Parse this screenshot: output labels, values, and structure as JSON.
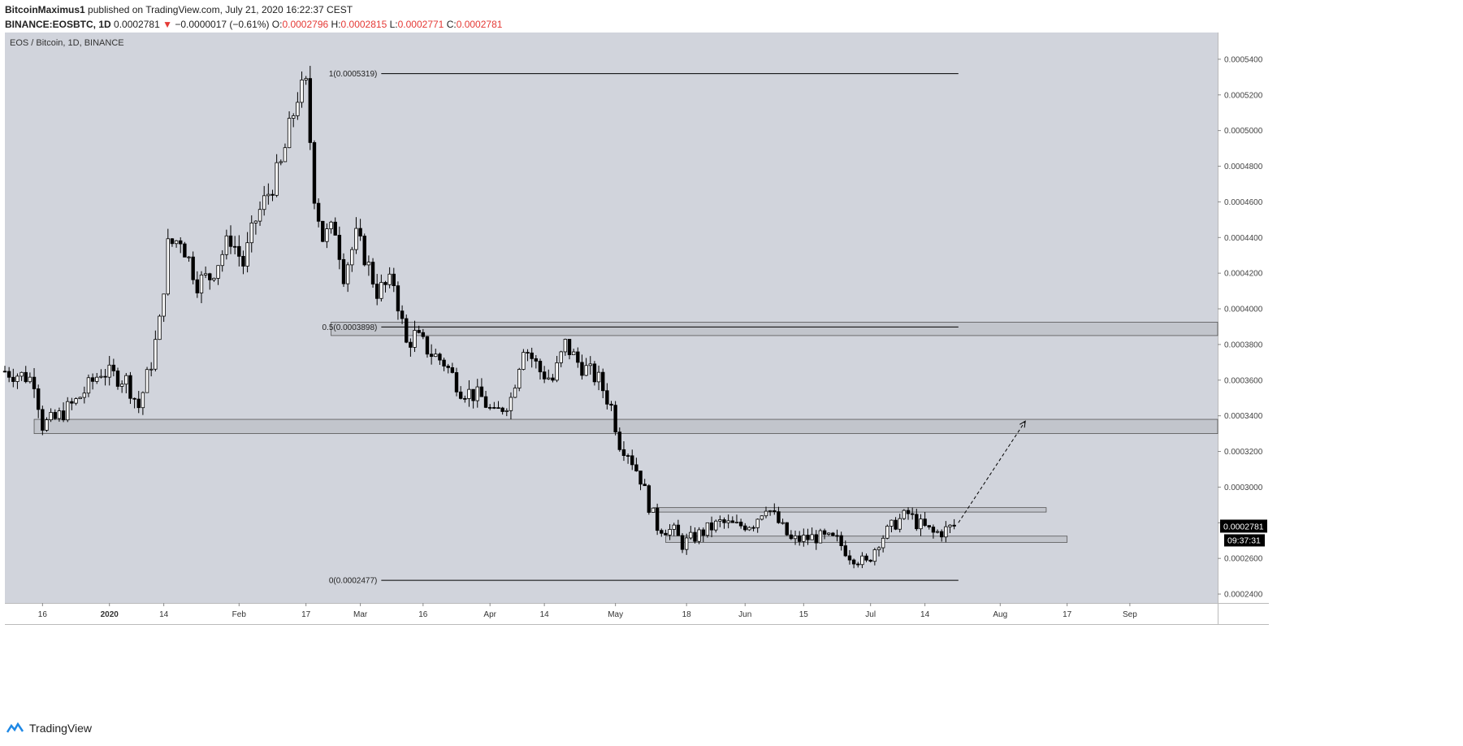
{
  "header": {
    "author": "BitcoinMaximus1",
    "published_text": "published on TradingView.com, July 21, 2020 16:22:37 CEST",
    "symbol": "BINANCE:EOSBTC, 1D",
    "last": "0.0002781",
    "change_arrow": "▼",
    "change": "−0.0000017 (−0.61%)",
    "o_label": "O:",
    "o_value": "0.0002796",
    "h_label": "H:",
    "h_value": "0.0002815",
    "l_label": "L:",
    "l_value": "0.0002771",
    "c_value": "0.0002781"
  },
  "footer": {
    "brand": "TradingView",
    "icon": "tradingview-logo-icon"
  },
  "colors": {
    "background": "#d1d4dc",
    "candle_up": "#ffffff",
    "candle_down": "#000000",
    "wick": "#000000",
    "zone_fill": "rgba(150,150,155,0.25)",
    "price_tag": "#000000",
    "negative": "#e53935"
  },
  "chart_data": {
    "type": "candlestick",
    "title": "EOS / Bitcoin, 1D, BINANCE",
    "ylim": [
      0.000235,
      0.000555
    ],
    "x_range": [
      "2019-12-07",
      "2020-09-22"
    ],
    "y_ticks": [
      "0.0005400",
      "0.0005200",
      "0.0005000",
      "0.0004800",
      "0.0004600",
      "0.0004400",
      "0.0004200",
      "0.0004000",
      "0.0003800",
      "0.0003600",
      "0.0003400",
      "0.0003200",
      "0.0003000",
      "0.0002800",
      "0.0002600",
      "0.0002400"
    ],
    "x_ticks": [
      {
        "label": "16",
        "date": "2019-12-16",
        "bold": false
      },
      {
        "label": "2020",
        "date": "2020-01-01",
        "bold": true
      },
      {
        "label": "14",
        "date": "2020-01-14",
        "bold": false
      },
      {
        "label": "Feb",
        "date": "2020-02-01",
        "bold": false
      },
      {
        "label": "17",
        "date": "2020-02-17",
        "bold": false
      },
      {
        "label": "Mar",
        "date": "2020-03-01",
        "bold": false
      },
      {
        "label": "16",
        "date": "2020-03-16",
        "bold": false
      },
      {
        "label": "Apr",
        "date": "2020-04-01",
        "bold": false
      },
      {
        "label": "14",
        "date": "2020-04-14",
        "bold": false
      },
      {
        "label": "May",
        "date": "2020-05-01",
        "bold": false
      },
      {
        "label": "18",
        "date": "2020-05-18",
        "bold": false
      },
      {
        "label": "Jun",
        "date": "2020-06-01",
        "bold": false
      },
      {
        "label": "15",
        "date": "2020-06-15",
        "bold": false
      },
      {
        "label": "Jul",
        "date": "2020-07-01",
        "bold": false
      },
      {
        "label": "14",
        "date": "2020-07-14",
        "bold": false
      },
      {
        "label": "Aug",
        "date": "2020-08-01",
        "bold": false
      },
      {
        "label": "17",
        "date": "2020-08-17",
        "bold": false
      },
      {
        "label": "Sep",
        "date": "2020-09-01",
        "bold": false
      }
    ],
    "anchors": [
      {
        "date": "2019-12-07",
        "close": 0.000365
      },
      {
        "date": "2019-12-12",
        "close": 0.000362
      },
      {
        "date": "2019-12-14",
        "close": 0.00036
      },
      {
        "date": "2019-12-16",
        "close": 0.000335
      },
      {
        "date": "2019-12-19",
        "close": 0.000338
      },
      {
        "date": "2019-12-24",
        "close": 0.000348
      },
      {
        "date": "2019-12-30",
        "close": 0.000365
      },
      {
        "date": "2020-01-05",
        "close": 0.00036
      },
      {
        "date": "2020-01-08",
        "close": 0.000345
      },
      {
        "date": "2020-01-11",
        "close": 0.00037
      },
      {
        "date": "2020-01-13",
        "close": 0.000392
      },
      {
        "date": "2020-01-15",
        "close": 0.000435
      },
      {
        "date": "2020-01-18",
        "close": 0.00044
      },
      {
        "date": "2020-01-22",
        "close": 0.000415
      },
      {
        "date": "2020-01-25",
        "close": 0.000418
      },
      {
        "date": "2020-01-30",
        "close": 0.00044
      },
      {
        "date": "2020-02-02",
        "close": 0.000425
      },
      {
        "date": "2020-02-05",
        "close": 0.00045
      },
      {
        "date": "2020-02-08",
        "close": 0.000465
      },
      {
        "date": "2020-02-11",
        "close": 0.00048
      },
      {
        "date": "2020-02-13",
        "close": 0.0005
      },
      {
        "date": "2020-02-15",
        "close": 0.00052
      },
      {
        "date": "2020-02-17",
        "close": 0.000524
      },
      {
        "date": "2020-02-19",
        "close": 0.000465
      },
      {
        "date": "2020-02-21",
        "close": 0.00044
      },
      {
        "date": "2020-02-24",
        "close": 0.000445
      },
      {
        "date": "2020-02-26",
        "close": 0.00042
      },
      {
        "date": "2020-02-29",
        "close": 0.00044
      },
      {
        "date": "2020-03-02",
        "close": 0.00043
      },
      {
        "date": "2020-03-05",
        "close": 0.00041
      },
      {
        "date": "2020-03-09",
        "close": 0.000415
      },
      {
        "date": "2020-03-12",
        "close": 0.00038
      },
      {
        "date": "2020-03-14",
        "close": 0.000385
      },
      {
        "date": "2020-03-18",
        "close": 0.000375
      },
      {
        "date": "2020-03-21",
        "close": 0.00037
      },
      {
        "date": "2020-03-25",
        "close": 0.000355
      },
      {
        "date": "2020-03-30",
        "close": 0.00035
      },
      {
        "date": "2020-04-02",
        "close": 0.00034
      },
      {
        "date": "2020-04-06",
        "close": 0.00035
      },
      {
        "date": "2020-04-09",
        "close": 0.00038
      },
      {
        "date": "2020-04-13",
        "close": 0.000365
      },
      {
        "date": "2020-04-16",
        "close": 0.00036
      },
      {
        "date": "2020-04-19",
        "close": 0.00038
      },
      {
        "date": "2020-04-22",
        "close": 0.00037
      },
      {
        "date": "2020-04-27",
        "close": 0.00036
      },
      {
        "date": "2020-04-30",
        "close": 0.000345
      },
      {
        "date": "2020-05-02",
        "close": 0.000325
      },
      {
        "date": "2020-05-04",
        "close": 0.00032
      },
      {
        "date": "2020-05-07",
        "close": 0.000305
      },
      {
        "date": "2020-05-09",
        "close": 0.00029
      },
      {
        "date": "2020-05-11",
        "close": 0.000278
      },
      {
        "date": "2020-05-15",
        "close": 0.000275
      },
      {
        "date": "2020-05-17",
        "close": 0.000268
      },
      {
        "date": "2020-05-22",
        "close": 0.000275
      },
      {
        "date": "2020-05-26",
        "close": 0.00028
      },
      {
        "date": "2020-05-30",
        "close": 0.000278
      },
      {
        "date": "2020-06-03",
        "close": 0.00028
      },
      {
        "date": "2020-06-06",
        "close": 0.00029
      },
      {
        "date": "2020-06-09",
        "close": 0.00028
      },
      {
        "date": "2020-06-12",
        "close": 0.00027
      },
      {
        "date": "2020-06-18",
        "close": 0.000272
      },
      {
        "date": "2020-06-23",
        "close": 0.00027
      },
      {
        "date": "2020-06-26",
        "close": 0.000262
      },
      {
        "date": "2020-06-30",
        "close": 0.000257
      },
      {
        "date": "2020-07-03",
        "close": 0.00027
      },
      {
        "date": "2020-07-07",
        "close": 0.00028
      },
      {
        "date": "2020-07-10",
        "close": 0.000285
      },
      {
        "date": "2020-07-12",
        "close": 0.00028
      },
      {
        "date": "2020-07-16",
        "close": 0.000274
      },
      {
        "date": "2020-07-18",
        "close": 0.000275
      },
      {
        "date": "2020-07-21",
        "close": 0.0002781
      }
    ],
    "horizontal_zones": [
      {
        "date_from": "2020-02-23",
        "date_to": "2020-09-22",
        "low": 0.000385,
        "high": 0.0003925
      },
      {
        "date_from": "2019-12-14",
        "date_to": "2020-09-22",
        "low": 0.00033,
        "high": 0.000338
      },
      {
        "date_from": "2020-05-10",
        "date_to": "2020-08-12",
        "low": 0.000286,
        "high": 0.0002885
      },
      {
        "date_from": "2020-05-13",
        "date_to": "2020-08-17",
        "low": 0.000269,
        "high": 0.0002725
      }
    ],
    "fib_levels": [
      {
        "label": "1(0.0005319)",
        "value": 0.0005319,
        "date_from": "2020-03-06",
        "date_to": "2020-07-22"
      },
      {
        "label": "0.5(0.0003898)",
        "value": 0.0003898,
        "date_from": "2020-03-06",
        "date_to": "2020-07-22"
      },
      {
        "label": "0(0.0002477)",
        "value": 0.0002477,
        "date_from": "2020-03-06",
        "date_to": "2020-07-22"
      }
    ],
    "projection_arrow": {
      "from_date": "2020-07-22",
      "from": 0.00028,
      "to_date": "2020-08-07",
      "to": 0.000337
    },
    "last_price_label": "0.0002781",
    "last_price": 0.0002781,
    "countdown_label": "09:37:31"
  }
}
